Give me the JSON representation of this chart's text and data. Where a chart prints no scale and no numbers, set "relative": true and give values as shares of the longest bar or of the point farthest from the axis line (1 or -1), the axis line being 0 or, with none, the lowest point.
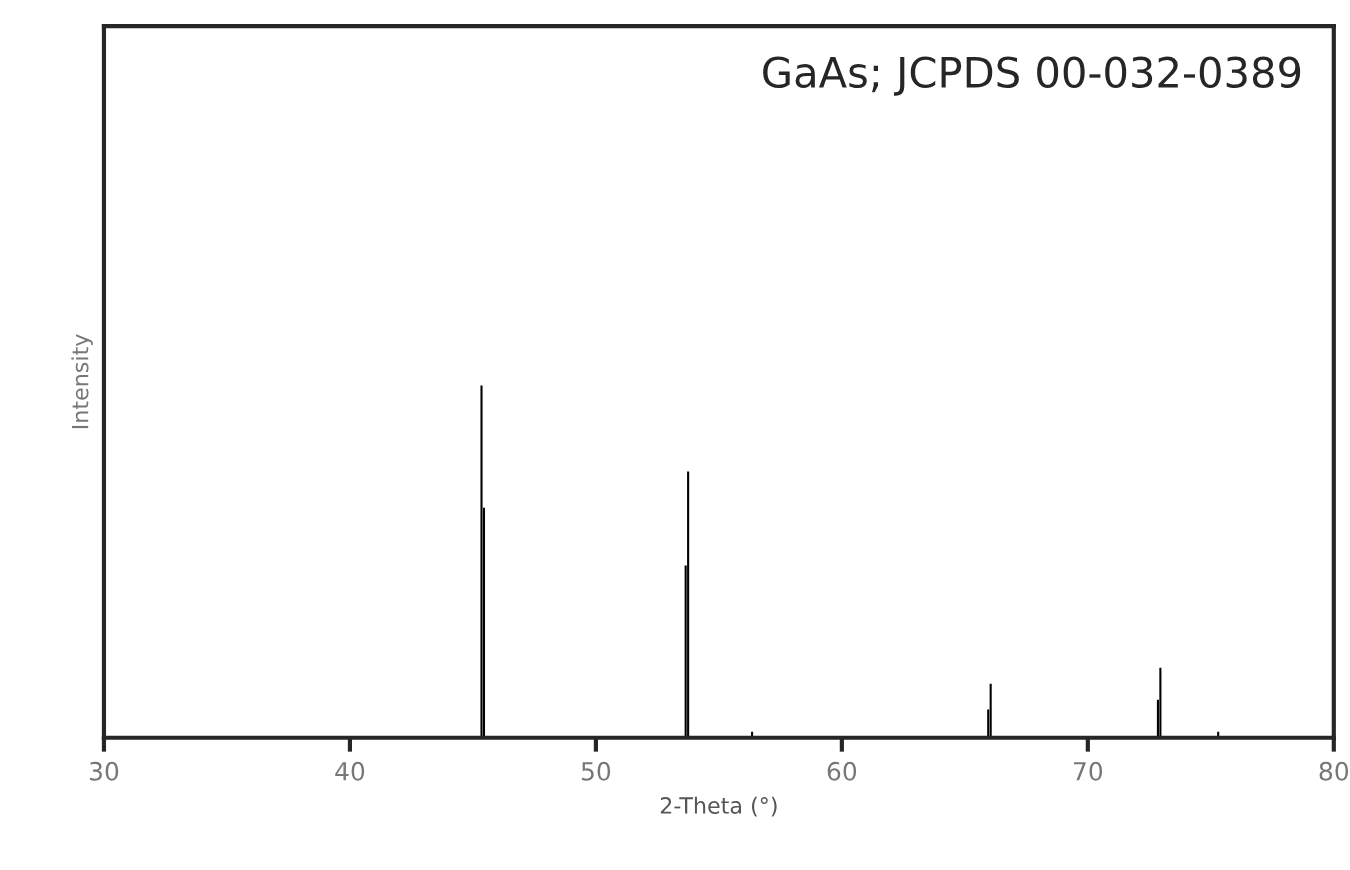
{
  "chart_data": {
    "type": "bar",
    "relative": true,
    "xlabel": "2-Theta (°)",
    "ylabel": "Intensity",
    "annotations": [
      "GaAs; JCPDS 00-032-0389"
    ],
    "xlim": [
      30,
      80
    ],
    "xticks": [
      30,
      40,
      50,
      60,
      70,
      80
    ],
    "series": [
      {
        "color": "#000000",
        "x": [
          45.35,
          45.45,
          53.65,
          53.75,
          56.35,
          65.95,
          66.05,
          72.85,
          72.95,
          75.3
        ],
        "values": [
          1,
          0.653,
          0.489,
          0.756,
          0.017,
          0.08,
          0.153,
          0.108,
          0.199,
          0.017
        ]
      }
    ]
  }
}
